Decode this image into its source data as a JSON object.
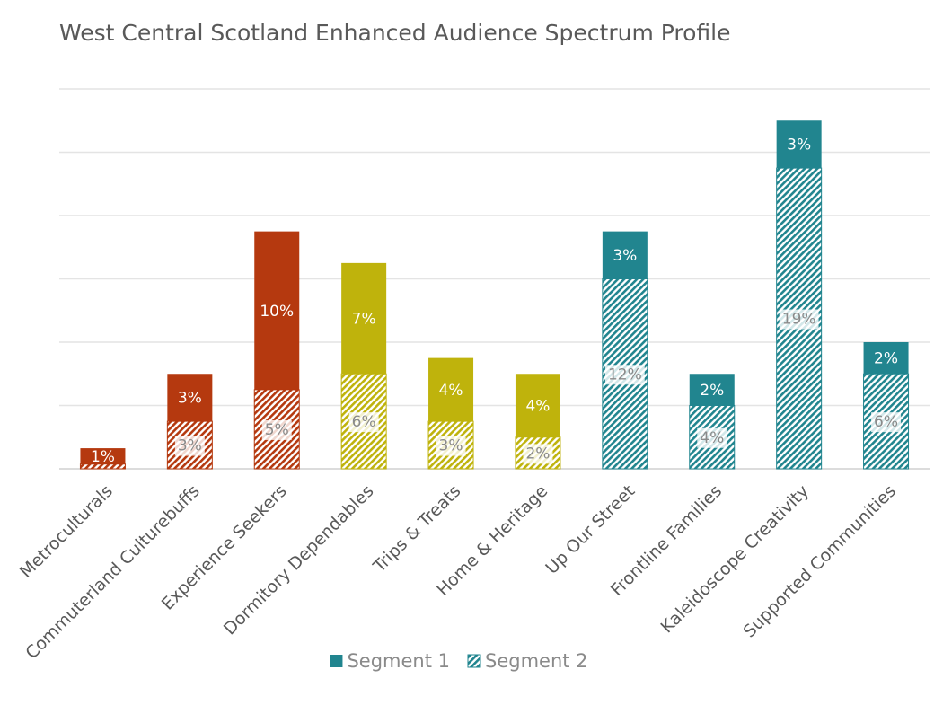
{
  "chart_data": {
    "type": "stacked_bar",
    "title": "West Central Scotland Enhanced Audience Spectrum Profile",
    "categories": [
      "Metroculturals",
      "Commuterland Culturebuffs",
      "Experience Seekers",
      "Dormitory Dependables",
      "Trips & Treats",
      "Home & Heritage",
      "Up Our Street",
      "Frontline Families",
      "Kaleidoscope Creativity",
      "Supported Communities"
    ],
    "colors": [
      "#b5390f",
      "#b5390f",
      "#b5390f",
      "#bfb30c",
      "#bfb30c",
      "#bfb30c",
      "#21858f",
      "#21858f",
      "#21858f",
      "#21858f"
    ],
    "stack_order": [
      1,
      0
    ],
    "series": [
      {
        "name": "Segment 1",
        "color": "#21858f",
        "fill": "solid",
        "values": [
          1,
          3,
          10,
          7,
          4,
          4,
          3,
          2,
          3,
          2
        ],
        "value_labels": [
          "1%",
          "3%",
          "10%",
          "7%",
          "4%",
          "4%",
          "3%",
          "2%",
          "3%",
          "2%"
        ]
      },
      {
        "name": "Segment 2",
        "color": "#21858f",
        "fill": "hatch",
        "values": [
          0.3,
          3,
          5,
          6,
          3,
          2,
          12,
          4,
          19,
          6
        ],
        "value_labels": [
          null,
          "3%",
          "5%",
          "6%",
          "3%",
          "2%",
          "12%",
          "4%",
          "19%",
          "6%"
        ]
      }
    ],
    "ylim": [
      0,
      24
    ],
    "yticks": [
      0,
      4,
      8,
      12,
      16,
      20,
      24
    ],
    "grid": true
  }
}
